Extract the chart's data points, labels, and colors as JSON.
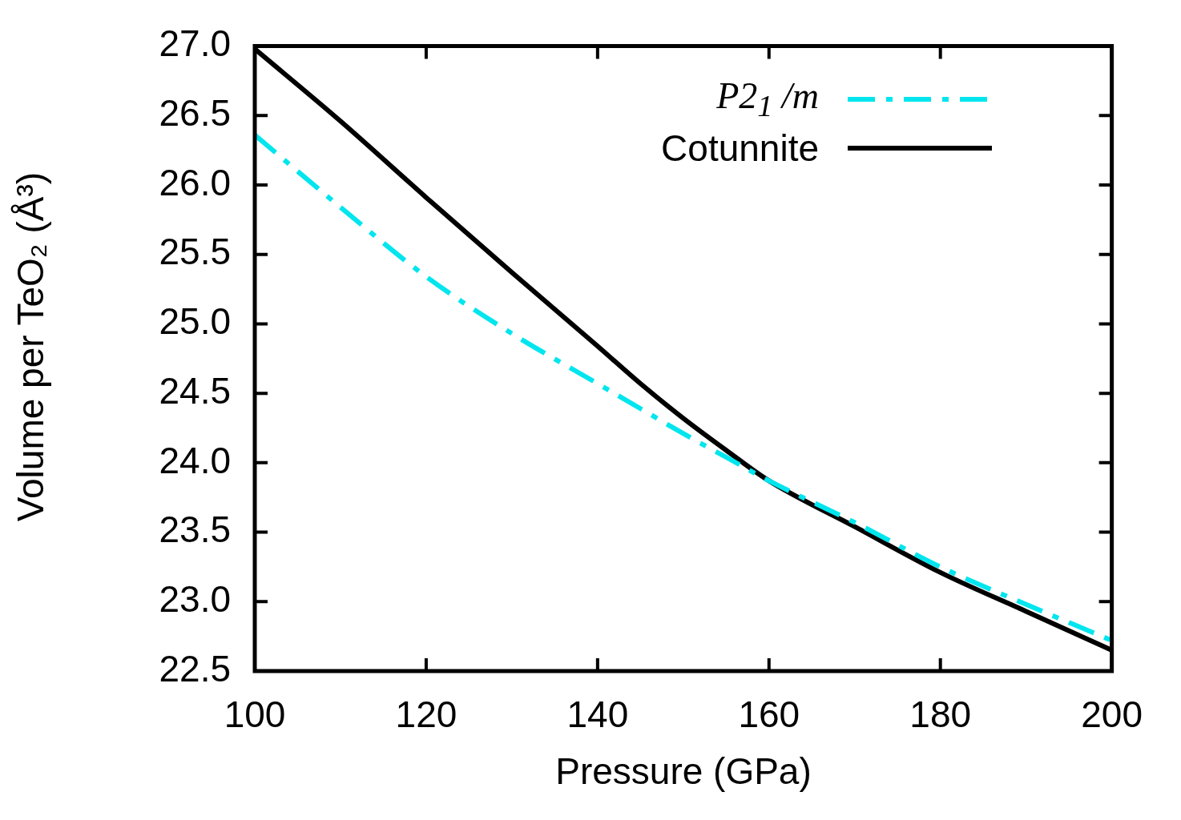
{
  "chart_data": {
    "type": "line",
    "xlabel": "Pressure (GPa)",
    "ylabel": "Volume per TeO₂ (Å³)",
    "xlim": [
      100,
      200
    ],
    "xticks": [
      100,
      120,
      140,
      160,
      180,
      200
    ],
    "ylim": [
      22.5,
      27.0
    ],
    "yticks": [
      {
        "value": 22.5,
        "label": "22.5"
      },
      {
        "value": 23,
        "label": "23.0"
      },
      {
        "value": 23.5,
        "label": "23.5"
      },
      {
        "value": 24,
        "label": "24.0"
      },
      {
        "value": 24.5,
        "label": "24.5"
      },
      {
        "value": 25,
        "label": "25.0"
      },
      {
        "value": 25.5,
        "label": "25.5"
      },
      {
        "value": 26,
        "label": "26.0"
      },
      {
        "value": 26.5,
        "label": "26.5"
      },
      {
        "value": 27,
        "label": "27.0"
      }
    ],
    "grid": false,
    "legend": "top right",
    "marker": "none",
    "x": [
      100,
      110,
      120,
      130,
      140,
      145,
      150,
      155,
      160,
      170,
      180,
      190,
      200
    ],
    "series": [
      {
        "name": "P2$_{1}$ /m",
        "color": "#00e5ee",
        "line_style": "dashdot",
        "values": [
          26.36,
          25.84,
          25.34,
          24.93,
          24.57,
          24.39,
          24.21,
          24.04,
          23.87,
          23.57,
          23.25,
          22.98,
          22.72
        ]
      },
      {
        "name": "Cotunnite",
        "color": "#000000",
        "line_style": "solid",
        "values": [
          26.98,
          26.46,
          25.91,
          25.37,
          24.84,
          24.57,
          24.32,
          24.09,
          23.87,
          23.54,
          23.21,
          22.93,
          22.65
        ]
      }
    ]
  }
}
